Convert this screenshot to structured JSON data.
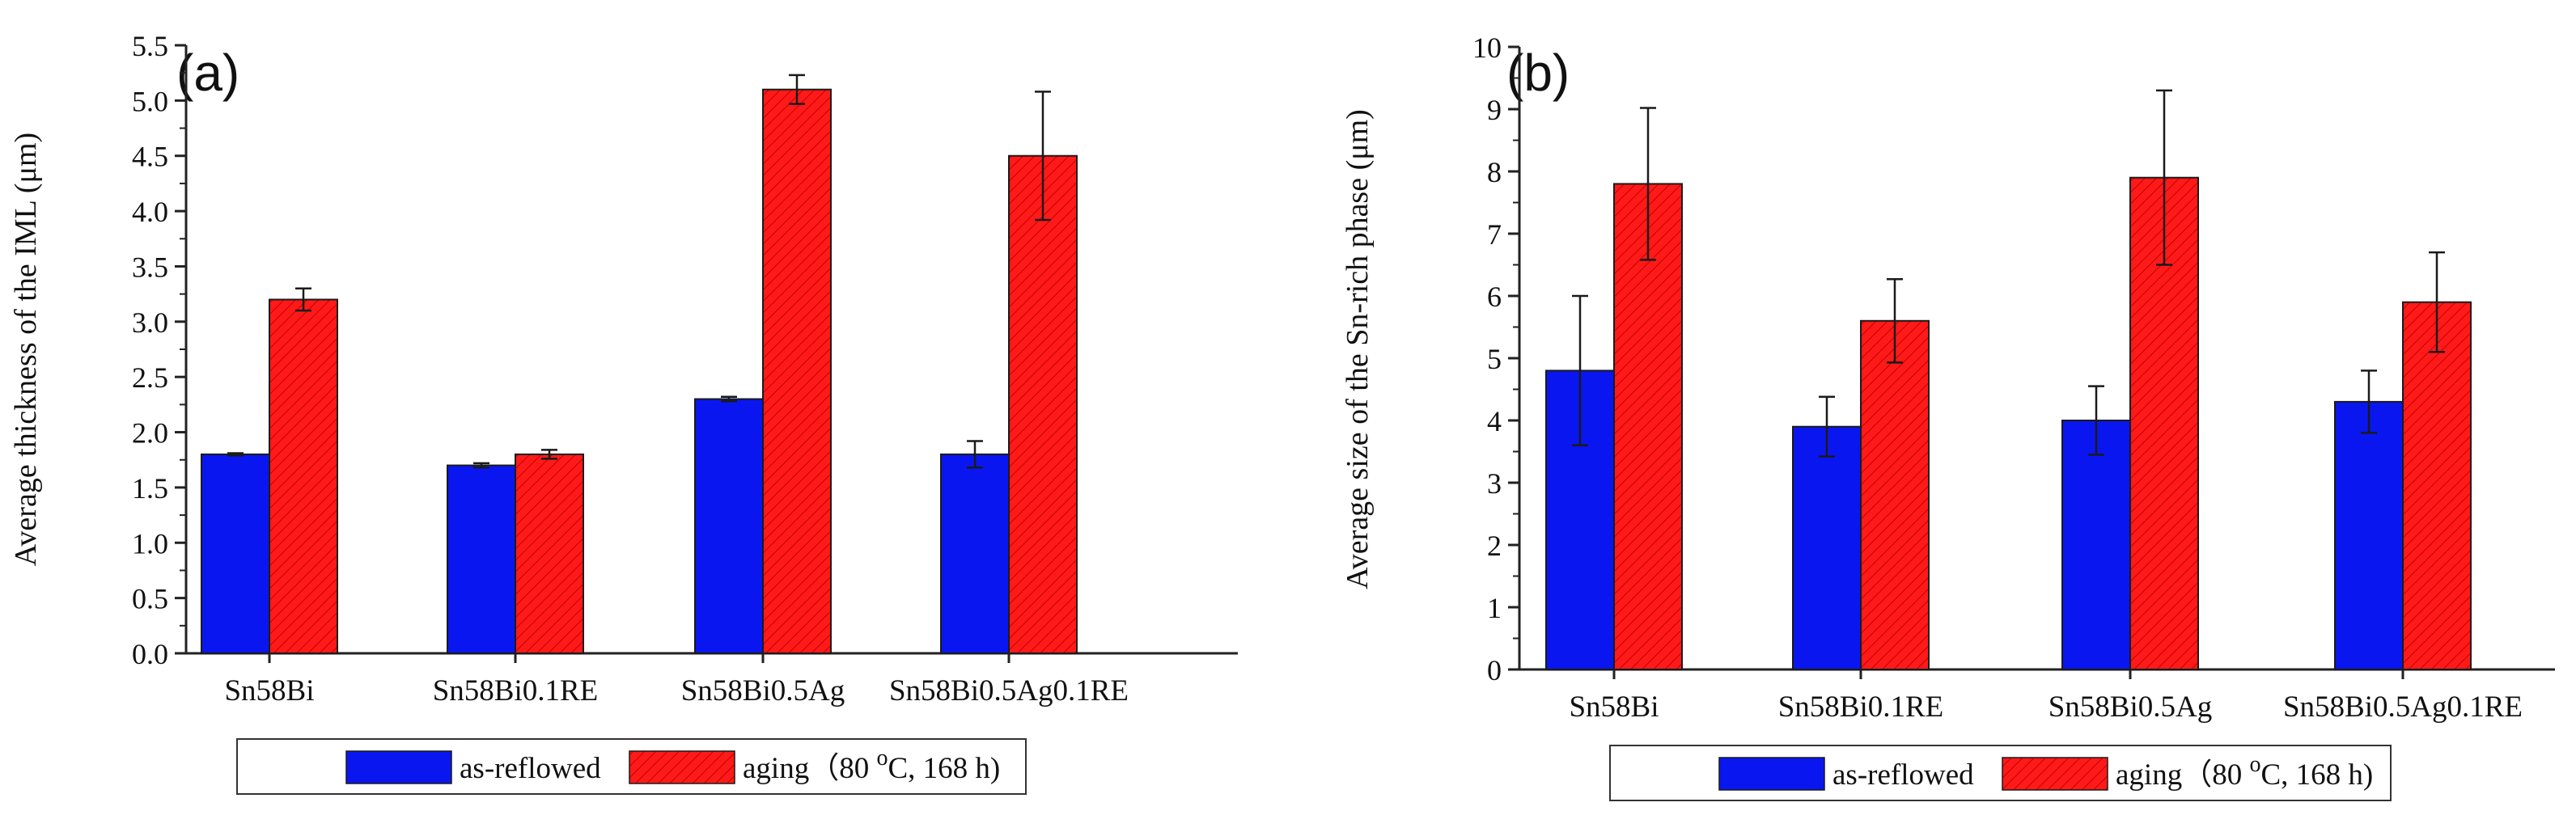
{
  "colors": {
    "as_reflowed": "#0a16f0",
    "aging": "#ff1a1a",
    "bar_edge": "#1a1a1a",
    "axis": "#222222",
    "hatch": "#b80000"
  },
  "chart_data": [
    {
      "type": "bar",
      "panel_label": "(a)",
      "ylabel": "Average thickness of the IML (μm)",
      "xlabel": "",
      "ylim": [
        0,
        5.5
      ],
      "y_ticks": [
        "0.0",
        "0.5",
        "1.0",
        "1.5",
        "2.0",
        "2.5",
        "3.0",
        "3.5",
        "4.0",
        "4.5",
        "5.0",
        "5.5"
      ],
      "categories": [
        "Sn58Bi",
        "Sn58Bi0.1RE",
        "Sn58Bi0.5Ag",
        "Sn58Bi0.5Ag0.1RE"
      ],
      "series": [
        {
          "name": "as-reflowed",
          "values": [
            1.8,
            1.7,
            2.3,
            1.8
          ],
          "errors": [
            0.01,
            0.02,
            0.02,
            0.12
          ]
        },
        {
          "name": "aging",
          "values": [
            3.2,
            1.8,
            5.1,
            4.5
          ],
          "errors": [
            0.1,
            0.04,
            0.13,
            0.58
          ]
        }
      ],
      "legend": {
        "position": "bottom",
        "entries": [
          "as-reflowed",
          "aging"
        ],
        "aging_label_main": "aging（80 ",
        "aging_label_sup": "o",
        "aging_label_tail": "C, 168 h)"
      }
    },
    {
      "type": "bar",
      "panel_label": "(b)",
      "ylabel": "Average size of the Sn-rich phase (μm)",
      "xlabel": "",
      "ylim": [
        0,
        10
      ],
      "y_ticks": [
        "0",
        "1",
        "2",
        "3",
        "4",
        "5",
        "6",
        "7",
        "8",
        "9",
        "10"
      ],
      "categories": [
        "Sn58Bi",
        "Sn58Bi0.1RE",
        "Sn58Bi0.5Ag",
        "Sn58Bi0.5Ag0.1RE"
      ],
      "series": [
        {
          "name": "as-reflowed",
          "values": [
            4.8,
            3.9,
            4.0,
            4.3
          ],
          "errors": [
            1.2,
            0.48,
            0.55,
            0.5
          ]
        },
        {
          "name": "aging",
          "values": [
            7.8,
            5.6,
            7.9,
            5.9
          ],
          "errors": [
            1.22,
            0.67,
            1.4,
            0.8
          ]
        }
      ],
      "legend": {
        "position": "bottom",
        "entries": [
          "as-reflowed",
          "aging"
        ],
        "aging_label_main": "aging（80 ",
        "aging_label_sup": "o",
        "aging_label_tail": "C, 168 h)"
      }
    }
  ]
}
